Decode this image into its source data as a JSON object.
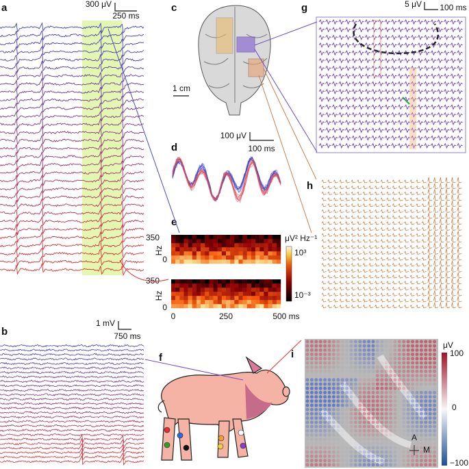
{
  "panels": {
    "a": {
      "label": "a",
      "scale_y": "300 μV",
      "scale_x": "250 ms"
    },
    "b": {
      "label": "b",
      "scale_y": "1 mV",
      "scale_x": "750 ms"
    },
    "c": {
      "label": "c",
      "scale": "1 cm"
    },
    "d": {
      "label": "d",
      "scale_y": "100 μV",
      "scale_x": "100 ms"
    },
    "e": {
      "label": "e",
      "spectrograms": [
        {
          "y_label": "Hz",
          "yticks": [
            "350",
            "0"
          ]
        },
        {
          "y_label": "Hz",
          "yticks": [
            "350",
            "0"
          ]
        }
      ],
      "xticks": [
        "0",
        "250",
        "500 ms"
      ],
      "colorbar_unit": "μV² Hz⁻¹",
      "colorbar_ticks": [
        "10³",
        "10⁻³"
      ]
    },
    "f": {
      "label": "f"
    },
    "g": {
      "label": "g",
      "scale_y": "5 μV",
      "scale_x": "100 ms"
    },
    "h": {
      "label": "h"
    },
    "i": {
      "label": "i",
      "colorbar_unit": "μV",
      "colorbar_ticks": [
        "100",
        "0",
        "−100"
      ],
      "compass": [
        "A",
        "M"
      ]
    }
  }
}
